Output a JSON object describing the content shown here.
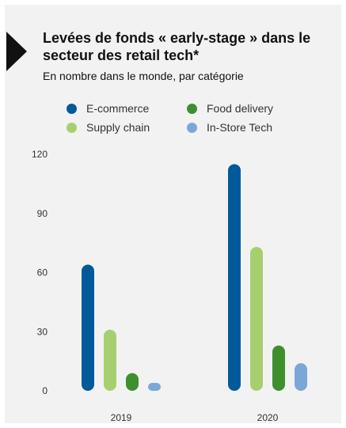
{
  "chart_data": {
    "type": "bar",
    "title": "Levées de fonds « early-stage » dans le secteur des retail tech*",
    "subtitle": "En nombre dans le monde, par catégorie",
    "categories": [
      "2019",
      "2020"
    ],
    "series": [
      {
        "name": "E-commerce",
        "color": "#005a9a",
        "values": [
          64,
          115
        ]
      },
      {
        "name": "Supply chain",
        "color": "#a8cf6f",
        "values": [
          31,
          73
        ]
      },
      {
        "name": "Food delivery",
        "color": "#3f8f2f",
        "values": [
          9,
          23
        ]
      },
      {
        "name": "In-Store Tech",
        "color": "#7ba7d8",
        "values": [
          4,
          14
        ]
      }
    ],
    "yticks": [
      "0",
      "30",
      "60",
      "90",
      "120"
    ],
    "ylim": [
      0,
      120
    ],
    "legend_position": "top",
    "grid": false
  }
}
